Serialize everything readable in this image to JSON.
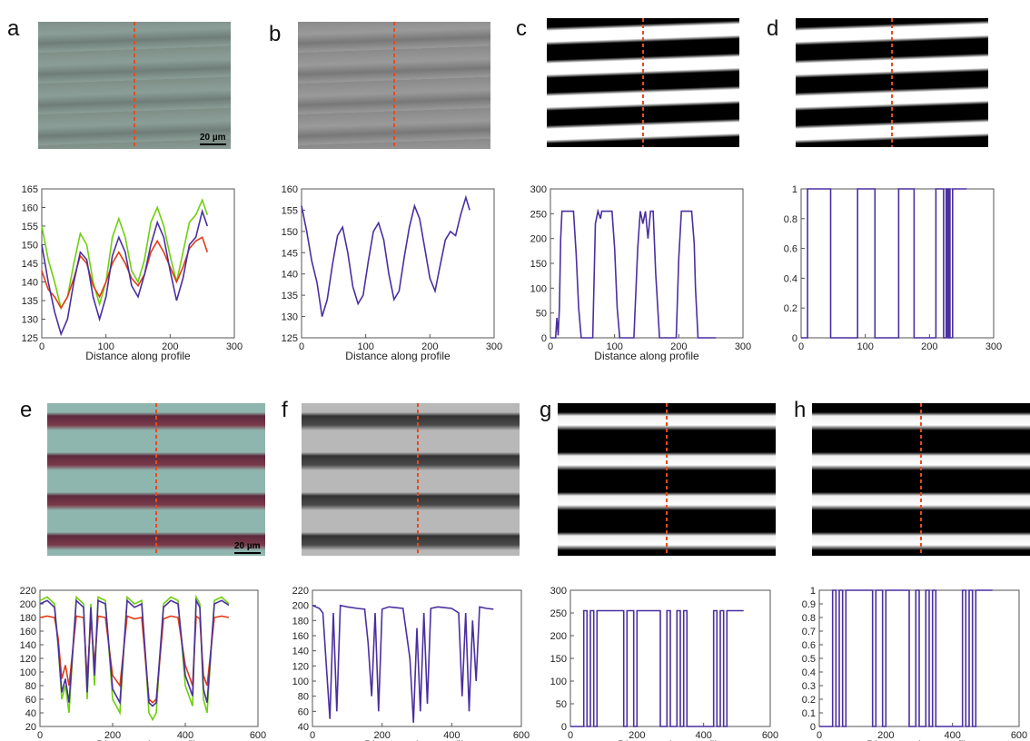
{
  "panels": {
    "a": "a",
    "b": "b",
    "c": "c",
    "d": "d",
    "e": "e",
    "f": "f",
    "g": "g",
    "h": "h"
  },
  "scale_bars": {
    "top": "20 µm",
    "bottom": "20 µm"
  },
  "colors": {
    "red": "#e23b17",
    "green": "#6fcf0f",
    "blue": "#4a2fa0",
    "dash": "#e84a1c"
  },
  "chart_data": [
    {
      "id": "a",
      "type": "line",
      "xlabel": "Distance along profile",
      "xlim": [
        0,
        300
      ],
      "ylim": [
        125,
        165
      ],
      "xticks": [
        0,
        100,
        200,
        300
      ],
      "yticks": [
        125,
        130,
        135,
        140,
        145,
        150,
        155,
        160,
        165
      ],
      "series": [
        {
          "color": "green",
          "x": [
            0,
            10,
            20,
            30,
            40,
            50,
            60,
            70,
            80,
            90,
            100,
            110,
            120,
            130,
            140,
            150,
            160,
            170,
            180,
            190,
            200,
            210,
            220,
            230,
            240,
            250,
            258
          ],
          "y": [
            155,
            146,
            140,
            133,
            136,
            145,
            153,
            150,
            140,
            134,
            140,
            152,
            157,
            152,
            143,
            140,
            146,
            156,
            160,
            155,
            147,
            140,
            148,
            156,
            158,
            162,
            158
          ]
        },
        {
          "color": "red",
          "x": [
            0,
            10,
            20,
            30,
            40,
            50,
            60,
            70,
            80,
            90,
            100,
            110,
            120,
            130,
            140,
            150,
            160,
            170,
            180,
            190,
            200,
            210,
            220,
            230,
            240,
            250,
            258
          ],
          "y": [
            143,
            138,
            136,
            133,
            136,
            141,
            147,
            145,
            139,
            136,
            140,
            145,
            148,
            145,
            141,
            139,
            142,
            148,
            151,
            148,
            144,
            140,
            144,
            149,
            151,
            152,
            148
          ]
        },
        {
          "color": "blue",
          "x": [
            0,
            10,
            20,
            30,
            40,
            50,
            60,
            70,
            80,
            90,
            100,
            110,
            120,
            130,
            140,
            150,
            160,
            170,
            180,
            190,
            200,
            210,
            220,
            230,
            240,
            250,
            258
          ],
          "y": [
            150,
            140,
            132,
            126,
            130,
            140,
            148,
            146,
            136,
            130,
            136,
            147,
            152,
            148,
            139,
            136,
            142,
            150,
            156,
            152,
            143,
            135,
            141,
            150,
            152,
            159,
            155
          ]
        }
      ]
    },
    {
      "id": "b",
      "type": "line",
      "xlabel": "Distance along profile",
      "xlim": [
        0,
        300
      ],
      "ylim": [
        125,
        160
      ],
      "xticks": [
        0,
        100,
        200,
        300
      ],
      "yticks": [
        125,
        130,
        135,
        140,
        145,
        150,
        155,
        160
      ],
      "series": [
        {
          "color": "blue",
          "x": [
            0,
            8,
            16,
            24,
            32,
            40,
            48,
            56,
            64,
            72,
            80,
            88,
            96,
            104,
            112,
            120,
            128,
            136,
            144,
            152,
            160,
            168,
            176,
            184,
            192,
            200,
            208,
            216,
            224,
            232,
            240,
            248,
            256,
            262
          ],
          "y": [
            156,
            150,
            143,
            138,
            130,
            134,
            142,
            149,
            151,
            145,
            137,
            133,
            135,
            143,
            150,
            152,
            148,
            140,
            134,
            136,
            144,
            151,
            156,
            153,
            146,
            139,
            136,
            142,
            148,
            150,
            149,
            154,
            158,
            155
          ]
        }
      ]
    },
    {
      "id": "c",
      "type": "line",
      "xlabel": "Distance along profile",
      "xlim": [
        0,
        300
      ],
      "ylim": [
        0,
        300
      ],
      "xticks": [
        0,
        100,
        200,
        300
      ],
      "yticks": [
        0,
        50,
        100,
        150,
        200,
        250,
        300
      ],
      "series": [
        {
          "color": "blue",
          "x": [
            0,
            8,
            10,
            12,
            14,
            16,
            18,
            20,
            24,
            30,
            36,
            40,
            44,
            48,
            60,
            66,
            70,
            74,
            78,
            80,
            84,
            90,
            96,
            100,
            104,
            108,
            120,
            130,
            136,
            140,
            144,
            148,
            152,
            156,
            160,
            164,
            170,
            180,
            196,
            200,
            204,
            208,
            212,
            216,
            220,
            224,
            226,
            230,
            240,
            258
          ],
          "y": [
            0,
            0,
            40,
            5,
            60,
            200,
            255,
            255,
            255,
            255,
            255,
            170,
            60,
            0,
            0,
            0,
            230,
            255,
            240,
            255,
            255,
            255,
            255,
            180,
            60,
            0,
            0,
            0,
            180,
            255,
            230,
            255,
            200,
            255,
            255,
            130,
            0,
            0,
            0,
            160,
            255,
            255,
            255,
            255,
            255,
            190,
            100,
            0,
            0,
            0
          ]
        }
      ]
    },
    {
      "id": "d",
      "type": "line",
      "xlabel": "",
      "xlim": [
        0,
        300
      ],
      "ylim": [
        0,
        1
      ],
      "xticks": [
        0,
        100,
        200,
        300
      ],
      "yticks": [
        0,
        0.2,
        0.4,
        0.6,
        0.8,
        1
      ],
      "series": [
        {
          "color": "blue",
          "x": [
            0,
            10,
            10,
            46,
            46,
            88,
            88,
            115,
            115,
            152,
            152,
            176,
            176,
            210,
            210,
            222,
            222,
            226,
            226,
            228,
            228,
            230,
            230,
            232,
            232,
            236,
            236,
            258
          ],
          "y": [
            0,
            0,
            1,
            1,
            0,
            0,
            1,
            1,
            0,
            0,
            1,
            1,
            0,
            0,
            1,
            1,
            0,
            0,
            1,
            1,
            0,
            0,
            1,
            1,
            0,
            0,
            1,
            1
          ]
        }
      ]
    },
    {
      "id": "e",
      "type": "line",
      "xlabel": "Distance along profile",
      "xlim": [
        0,
        600
      ],
      "ylim": [
        20,
        220
      ],
      "xticks": [
        0,
        200,
        400,
        600
      ],
      "yticks": [
        20,
        40,
        60,
        80,
        100,
        120,
        140,
        160,
        180,
        200,
        220
      ],
      "series": [
        {
          "color": "green",
          "x": [
            0,
            20,
            40,
            50,
            60,
            70,
            80,
            100,
            120,
            130,
            140,
            150,
            160,
            180,
            200,
            220,
            240,
            260,
            280,
            300,
            310,
            320,
            340,
            360,
            380,
            400,
            420,
            430,
            440,
            450,
            460,
            480,
            500,
            520
          ],
          "y": [
            205,
            210,
            200,
            140,
            60,
            80,
            40,
            210,
            200,
            60,
            200,
            80,
            210,
            205,
            60,
            40,
            210,
            200,
            205,
            40,
            30,
            40,
            200,
            210,
            205,
            80,
            50,
            210,
            200,
            60,
            40,
            205,
            210,
            200
          ]
        },
        {
          "color": "red",
          "x": [
            0,
            20,
            40,
            50,
            60,
            70,
            80,
            100,
            120,
            130,
            140,
            150,
            160,
            180,
            200,
            220,
            240,
            260,
            280,
            300,
            310,
            320,
            340,
            360,
            380,
            400,
            420,
            430,
            440,
            450,
            460,
            480,
            500,
            520
          ],
          "y": [
            180,
            182,
            180,
            150,
            90,
            110,
            80,
            182,
            180,
            90,
            178,
            110,
            182,
            180,
            95,
            80,
            182,
            178,
            180,
            60,
            55,
            60,
            178,
            182,
            180,
            110,
            80,
            182,
            178,
            95,
            80,
            180,
            182,
            180
          ]
        },
        {
          "color": "blue",
          "x": [
            0,
            20,
            40,
            50,
            60,
            70,
            80,
            100,
            120,
            130,
            140,
            150,
            160,
            180,
            200,
            220,
            240,
            260,
            280,
            300,
            310,
            320,
            340,
            360,
            380,
            400,
            420,
            430,
            440,
            450,
            460,
            480,
            500,
            520
          ],
          "y": [
            200,
            205,
            195,
            140,
            70,
            90,
            55,
            205,
            195,
            70,
            195,
            95,
            205,
            200,
            75,
            55,
            205,
            195,
            200,
            55,
            50,
            55,
            195,
            205,
            200,
            95,
            65,
            205,
            195,
            75,
            55,
            200,
            205,
            198
          ]
        }
      ]
    },
    {
      "id": "f",
      "type": "line",
      "xlabel": "Distance along profile",
      "xlim": [
        0,
        600
      ],
      "ylim": [
        40,
        220
      ],
      "xticks": [
        0,
        200,
        400,
        600
      ],
      "yticks": [
        40,
        60,
        80,
        100,
        120,
        140,
        160,
        180,
        200,
        220
      ],
      "series": [
        {
          "color": "blue",
          "x": [
            0,
            20,
            30,
            40,
            50,
            60,
            70,
            80,
            100,
            130,
            150,
            160,
            170,
            180,
            190,
            200,
            220,
            240,
            260,
            280,
            290,
            300,
            310,
            320,
            330,
            340,
            360,
            380,
            400,
            420,
            430,
            440,
            450,
            460,
            470,
            480,
            500,
            520
          ],
          "y": [
            200,
            196,
            190,
            120,
            50,
            190,
            60,
            200,
            198,
            196,
            195,
            150,
            80,
            190,
            60,
            195,
            198,
            197,
            196,
            130,
            45,
            170,
            60,
            190,
            70,
            196,
            198,
            197,
            196,
            190,
            80,
            190,
            60,
            180,
            100,
            198,
            196,
            195
          ]
        }
      ]
    },
    {
      "id": "g",
      "type": "line",
      "xlabel": "Distance along profile",
      "xlim": [
        0,
        600
      ],
      "ylim": [
        0,
        300
      ],
      "xticks": [
        0,
        200,
        400,
        600
      ],
      "yticks": [
        0,
        50,
        100,
        150,
        200,
        250,
        300
      ],
      "series": [
        {
          "color": "blue",
          "x": [
            0,
            40,
            40,
            50,
            50,
            60,
            60,
            70,
            70,
            80,
            80,
            160,
            160,
            170,
            170,
            190,
            190,
            200,
            200,
            270,
            270,
            290,
            290,
            300,
            300,
            320,
            320,
            330,
            330,
            340,
            340,
            350,
            350,
            430,
            430,
            440,
            440,
            450,
            450,
            460,
            460,
            470,
            470,
            520
          ],
          "y": [
            0,
            0,
            255,
            255,
            0,
            0,
            255,
            255,
            0,
            0,
            255,
            255,
            0,
            0,
            255,
            255,
            0,
            0,
            255,
            255,
            0,
            0,
            255,
            255,
            0,
            0,
            255,
            255,
            0,
            0,
            255,
            255,
            0,
            0,
            255,
            255,
            0,
            0,
            255,
            255,
            0,
            0,
            255,
            255
          ]
        }
      ]
    },
    {
      "id": "h",
      "type": "line",
      "xlabel": "Distance along profile",
      "xlim": [
        0,
        600
      ],
      "ylim": [
        0,
        1
      ],
      "xticks": [
        0,
        200,
        400,
        600
      ],
      "yticks": [
        0,
        0.1,
        0.2,
        0.3,
        0.4,
        0.5,
        0.6,
        0.7,
        0.8,
        0.9,
        1
      ],
      "series": [
        {
          "color": "blue",
          "x": [
            0,
            40,
            40,
            50,
            50,
            60,
            60,
            70,
            70,
            80,
            80,
            160,
            160,
            170,
            170,
            190,
            190,
            200,
            200,
            270,
            270,
            290,
            290,
            300,
            300,
            320,
            320,
            330,
            330,
            340,
            340,
            350,
            350,
            430,
            430,
            440,
            440,
            450,
            450,
            460,
            460,
            470,
            470,
            520
          ],
          "y": [
            0,
            0,
            1,
            1,
            0,
            0,
            1,
            1,
            0,
            0,
            1,
            1,
            0,
            0,
            1,
            1,
            0,
            0,
            1,
            1,
            0,
            0,
            1,
            1,
            0,
            0,
            1,
            1,
            0,
            0,
            1,
            1,
            0,
            0,
            1,
            1,
            0,
            0,
            1,
            1,
            0,
            0,
            1,
            1
          ]
        }
      ]
    }
  ]
}
